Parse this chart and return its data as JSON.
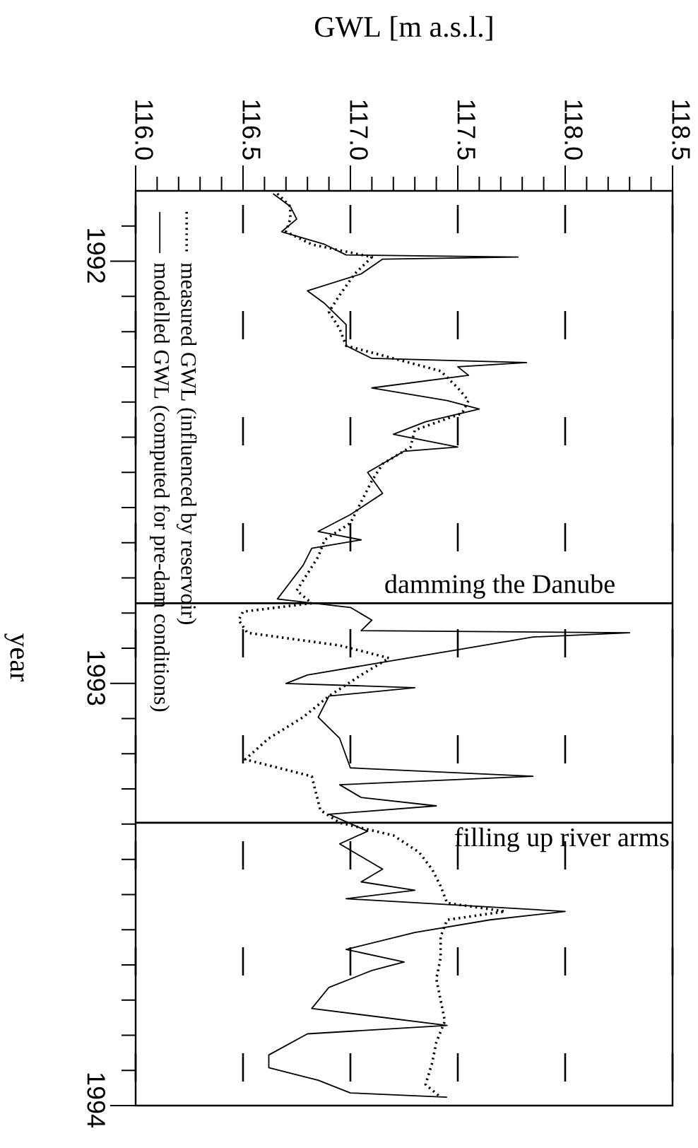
{
  "chart_data": {
    "type": "line",
    "xlabel": "GWL [m a.s.l.]",
    "ylabel": "year",
    "xlim": [
      116.0,
      118.5
    ],
    "xticks": [
      {
        "value": 116.0,
        "label": "116.0"
      },
      {
        "value": 116.1,
        "label": null
      },
      {
        "value": 116.2,
        "label": null
      },
      {
        "value": 116.3,
        "label": null
      },
      {
        "value": 116.4,
        "label": null
      },
      {
        "value": 116.5,
        "label": "116.5"
      },
      {
        "value": 116.6,
        "label": null
      },
      {
        "value": 116.7,
        "label": null
      },
      {
        "value": 116.8,
        "label": null
      },
      {
        "value": 116.9,
        "label": null
      },
      {
        "value": 117.0,
        "label": "117.0"
      },
      {
        "value": 117.1,
        "label": null
      },
      {
        "value": 117.2,
        "label": null
      },
      {
        "value": 117.3,
        "label": null
      },
      {
        "value": 117.4,
        "label": null
      },
      {
        "value": 117.5,
        "label": "117.5"
      },
      {
        "value": 117.6,
        "label": null
      },
      {
        "value": 117.7,
        "label": null
      },
      {
        "value": 117.8,
        "label": null
      },
      {
        "value": 117.9,
        "label": null
      },
      {
        "value": 118.0,
        "label": "118.0"
      },
      {
        "value": 118.1,
        "label": null
      },
      {
        "value": 118.2,
        "label": null
      },
      {
        "value": 118.3,
        "label": null
      },
      {
        "value": 118.4,
        "label": null
      },
      {
        "value": 118.5,
        "label": "118.5"
      }
    ],
    "ylim": [
      1994.0,
      1991.8333
    ],
    "yticks": [
      {
        "value": 1991.9167,
        "label": null
      },
      {
        "value": 1992,
        "label": "1992"
      },
      {
        "value": 1992.0833,
        "label": null
      },
      {
        "value": 1992.1667,
        "label": null
      },
      {
        "value": 1992.25,
        "label": null
      },
      {
        "value": 1992.3333,
        "label": null
      },
      {
        "value": 1992.4167,
        "label": null
      },
      {
        "value": 1992.5,
        "label": null
      },
      {
        "value": 1992.5833,
        "label": null
      },
      {
        "value": 1992.6667,
        "label": null
      },
      {
        "value": 1992.75,
        "label": null
      },
      {
        "value": 1992.8333,
        "label": null
      },
      {
        "value": 1992.9167,
        "label": null
      },
      {
        "value": 1993,
        "label": "1993"
      },
      {
        "value": 1993.0833,
        "label": null
      },
      {
        "value": 1993.1667,
        "label": null
      },
      {
        "value": 1993.25,
        "label": null
      },
      {
        "value": 1993.3333,
        "label": null
      },
      {
        "value": 1993.4167,
        "label": null
      },
      {
        "value": 1993.5,
        "label": null
      },
      {
        "value": 1993.5833,
        "label": null
      },
      {
        "value": 1993.6667,
        "label": null
      },
      {
        "value": 1993.75,
        "label": null
      },
      {
        "value": 1993.8333,
        "label": null
      },
      {
        "value": 1993.9167,
        "label": null
      },
      {
        "value": 1994,
        "label": "1994"
      }
    ],
    "grid": "x",
    "legend": "top left",
    "series": [
      {
        "name": "measured GWL (influenced by reservoir)",
        "color": "#000000",
        "line_style": "dotted",
        "values": [
          1991.84,
          1991.87,
          1991.9,
          1991.93,
          1991.96,
          1991.99,
          1992.03,
          1992.08,
          1992.12,
          1992.16,
          1992.2,
          1992.23,
          1992.26,
          1992.3,
          1992.33,
          1992.36,
          1992.4,
          1992.44,
          1992.48,
          1992.52,
          1992.57,
          1992.62,
          1992.66,
          1992.7,
          1992.74,
          1992.78,
          1992.81,
          1992.83,
          1992.85,
          1992.88,
          1992.91,
          1992.94,
          1992.98,
          1993.03,
          1993.08,
          1993.13,
          1993.18,
          1993.22,
          1993.26,
          1993.3,
          1993.33,
          1993.36,
          1993.4,
          1993.44,
          1993.48,
          1993.52,
          1993.54,
          1993.56,
          1993.6,
          1993.65,
          1993.7,
          1993.75,
          1993.8,
          1993.85,
          1993.9,
          1993.95,
          1993.98
        ],
        "x": [
          116.66,
          116.72,
          116.72,
          116.7,
          116.82,
          117.1,
          117.02,
          116.95,
          116.9,
          116.95,
          116.98,
          117.2,
          117.42,
          117.5,
          117.55,
          117.52,
          117.3,
          117.28,
          117.15,
          117.1,
          117.05,
          117.0,
          116.88,
          116.85,
          116.8,
          116.75,
          116.82,
          116.5,
          116.48,
          116.52,
          116.95,
          117.18,
          117.05,
          116.9,
          116.78,
          116.62,
          116.51,
          116.82,
          116.84,
          116.86,
          116.95,
          117.2,
          117.32,
          117.38,
          117.42,
          117.45,
          117.72,
          117.45,
          117.42,
          117.42,
          117.4,
          117.42,
          117.44,
          117.4,
          117.38,
          117.35,
          117.42
        ]
      },
      {
        "name": "modelled GWL (computed for pre-dam conditions)",
        "color": "#000000",
        "line_style": "solid",
        "values": [
          1991.84,
          1991.87,
          1991.9,
          1991.93,
          1991.96,
          1991.985,
          1991.99,
          1991.995,
          1992.03,
          1992.07,
          1992.1,
          1992.15,
          1992.2,
          1992.23,
          1992.24,
          1992.25,
          1992.27,
          1992.3,
          1992.33,
          1992.35,
          1992.38,
          1992.41,
          1992.44,
          1992.45,
          1992.5,
          1992.55,
          1992.6,
          1992.64,
          1992.66,
          1992.68,
          1992.72,
          1992.76,
          1992.8,
          1992.82,
          1992.85,
          1992.875,
          1992.88,
          1992.89,
          1992.92,
          1992.95,
          1992.98,
          1993.0,
          1993.01,
          1993.03,
          1993.08,
          1993.13,
          1993.2,
          1993.22,
          1993.24,
          1993.27,
          1993.29,
          1993.31,
          1993.35,
          1993.38,
          1993.44,
          1993.47,
          1993.49,
          1993.51,
          1993.54,
          1993.56,
          1993.59,
          1993.63,
          1993.66,
          1993.68,
          1993.72,
          1993.77,
          1993.81,
          1993.83,
          1993.88,
          1993.91,
          1993.94,
          1993.97,
          1993.98
        ],
        "x": [
          116.64,
          116.72,
          116.75,
          116.68,
          116.88,
          116.98,
          117.78,
          117.15,
          117.05,
          116.8,
          116.88,
          116.98,
          116.98,
          117.1,
          117.82,
          117.5,
          117.55,
          117.1,
          117.45,
          117.6,
          117.35,
          117.2,
          117.5,
          117.25,
          117.08,
          117.15,
          117.0,
          116.85,
          117.05,
          116.82,
          116.78,
          116.72,
          116.66,
          117.0,
          117.1,
          117.05,
          118.3,
          117.85,
          117.5,
          117.15,
          116.8,
          116.7,
          117.3,
          116.9,
          116.85,
          116.95,
          117.0,
          117.85,
          116.95,
          117.05,
          117.4,
          116.9,
          117.08,
          116.95,
          117.15,
          117.05,
          117.3,
          116.98,
          118.0,
          117.65,
          117.3,
          116.98,
          117.25,
          117.1,
          116.9,
          116.82,
          117.45,
          116.8,
          116.62,
          116.62,
          116.85,
          117.0,
          117.45
        ]
      }
    ],
    "ref_lines": [
      {
        "axis": "y",
        "value": 1992.81,
        "label": "damming the Danube"
      },
      {
        "axis": "y",
        "value": 1993.33,
        "label": "filling up river arms"
      }
    ]
  }
}
